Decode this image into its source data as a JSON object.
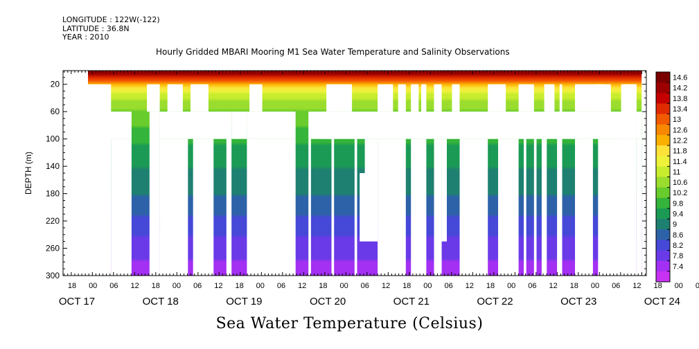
{
  "header": {
    "longitude": "LONGITUDE : 122W(-122)",
    "latitude": "LATITUDE : 36.8N",
    "year": "YEAR : 2010",
    "title": "Hourly Gridded MBARI Mooring M1 Sea Water Temperature and Salinity Observations"
  },
  "chart_data": {
    "type": "heatmap",
    "title": "Hourly Gridded MBARI Mooring M1 Sea Water Temperature and Salinity Observations",
    "xlabel": "Sea Water Temperature (Celsius)",
    "ylabel": "DEPTH (m)",
    "ylim": [
      300,
      0
    ],
    "y_ticks": [
      20,
      60,
      100,
      140,
      180,
      220,
      260,
      300
    ],
    "x_range_hours": [
      0,
      216
    ],
    "x_hour_ticks": [
      "18",
      "00",
      "06",
      "12",
      "18",
      "00",
      "06",
      "12",
      "18",
      "00",
      "06",
      "12",
      "18",
      "00",
      "06",
      "12",
      "18",
      "00",
      "06",
      "12",
      "18",
      "00",
      "06",
      "12",
      "18",
      "00",
      "06",
      "12",
      "18",
      "00",
      "06",
      "12"
    ],
    "x_day_labels": [
      "OCT 17",
      "OCT 18",
      "OCT 19",
      "OCT 20",
      "OCT 21",
      "OCT 22",
      "OCT 23",
      "OCT 24"
    ],
    "colorbar_levels": [
      "14.6",
      "14.2",
      "13.8",
      "13.4",
      "13",
      "12.6",
      "12.2",
      "11.8",
      "11.4",
      "11",
      "10.6",
      "10.2",
      "9.8",
      "9.4",
      "9",
      "8.6",
      "8.2",
      "7.8",
      "7.4"
    ],
    "colorbar_colors": [
      "#7a0000",
      "#9c0000",
      "#c40000",
      "#e02a00",
      "#f25a00",
      "#f88800",
      "#fbb000",
      "#fde23a",
      "#eef23a",
      "#c8ec2e",
      "#9bdd2e",
      "#68cc2c",
      "#34b43a",
      "#1b9a55",
      "#1e8070",
      "#2d62a8",
      "#4648d8",
      "#6a3ae8",
      "#a330f2",
      "#c832f2"
    ],
    "temperature_profile": [
      {
        "depth": 5,
        "temp": 14.2
      },
      {
        "depth": 15,
        "temp": 13.0
      },
      {
        "depth": 25,
        "temp": 12.0
      },
      {
        "depth": 40,
        "temp": 11.0
      },
      {
        "depth": 60,
        "temp": 10.5
      },
      {
        "depth": 100,
        "temp": 9.9
      },
      {
        "depth": 140,
        "temp": 9.4
      },
      {
        "depth": 180,
        "temp": 9.0
      },
      {
        "depth": 220,
        "temp": 8.5
      },
      {
        "depth": 260,
        "temp": 8.0
      },
      {
        "depth": 300,
        "temp": 7.5
      }
    ],
    "missing_blocks": [
      {
        "x0": 0,
        "x1": 9,
        "y0": 20,
        "y1": 300
      },
      {
        "x0": 0,
        "x1": 17,
        "y0": 60,
        "y1": 100
      },
      {
        "x0": 9,
        "x1": 17,
        "y0": 100,
        "y1": 300
      },
      {
        "x0": 9,
        "x1": 13,
        "y0": 80,
        "y1": 100
      },
      {
        "x0": 24,
        "x1": 28,
        "y0": 60,
        "y1": 300
      },
      {
        "x0": 28,
        "x1": 56,
        "y0": 60,
        "y1": 100
      },
      {
        "x0": 28,
        "x1": 39,
        "y0": 100,
        "y1": 300
      },
      {
        "x0": 41,
        "x1": 49,
        "y0": 100,
        "y1": 300
      },
      {
        "x0": 62,
        "x1": 81,
        "y0": 60,
        "y1": 100
      },
      {
        "x0": 62,
        "x1": 81,
        "y0": 100,
        "y1": 300
      },
      {
        "x0": 23,
        "x1": 28,
        "y0": 20,
        "y1": 60
      },
      {
        "x0": 31,
        "x1": 37,
        "y0": 20,
        "y1": 60
      },
      {
        "x0": 40,
        "x1": 47,
        "y0": 20,
        "y1": 60
      },
      {
        "x0": 63,
        "x1": 68,
        "y0": 20,
        "y1": 60
      },
      {
        "x0": 86,
        "x1": 105,
        "y0": 60,
        "y1": 100
      },
      {
        "x0": 93,
        "x1": 103,
        "y0": 20,
        "y1": 60
      },
      {
        "x0": 91,
        "x1": 95,
        "y0": 60,
        "y1": 100
      },
      {
        "x0": 105,
        "x1": 214,
        "y0": 60,
        "y1": 100
      },
      {
        "x0": 86,
        "x1": 87,
        "y0": 100,
        "y1": 300
      },
      {
        "x0": 95,
        "x1": 96,
        "y0": 100,
        "y1": 300
      },
      {
        "x0": 104,
        "x1": 105,
        "y0": 100,
        "y1": 300
      },
      {
        "x0": 108,
        "x1": 113,
        "y0": 100,
        "y1": 150
      },
      {
        "x0": 106,
        "x1": 113,
        "y0": 150,
        "y1": 250
      },
      {
        "x0": 113,
        "x1": 124,
        "y0": 100,
        "y1": 300
      },
      {
        "x0": 126,
        "x1": 132,
        "y0": 100,
        "y1": 300
      },
      {
        "x0": 135,
        "x1": 138,
        "y0": 100,
        "y1": 300
      },
      {
        "x0": 138,
        "x1": 140,
        "y0": 100,
        "y1": 250
      },
      {
        "x0": 145,
        "x1": 156,
        "y0": 100,
        "y1": 300
      },
      {
        "x0": 160,
        "x1": 168,
        "y0": 100,
        "y1": 300
      },
      {
        "x0": 170,
        "x1": 171,
        "y0": 100,
        "y1": 300
      },
      {
        "x0": 174,
        "x1": 175,
        "y0": 100,
        "y1": 300
      },
      {
        "x0": 177,
        "x1": 179,
        "y0": 100,
        "y1": 300
      },
      {
        "x0": 190,
        "x1": 197,
        "y0": 100,
        "y1": 300
      },
      {
        "x0": 199,
        "x1": 214,
        "y0": 100,
        "y1": 300
      },
      {
        "x0": 208,
        "x1": 214,
        "y0": 20,
        "y1": 100
      },
      {
        "x0": 113,
        "x1": 119,
        "y0": 20,
        "y1": 60
      },
      {
        "x0": 121,
        "x1": 124,
        "y0": 20,
        "y1": 60
      },
      {
        "x0": 126,
        "x1": 129,
        "y0": 20,
        "y1": 60
      },
      {
        "x0": 130,
        "x1": 132,
        "y0": 20,
        "y1": 60
      },
      {
        "x0": 135,
        "x1": 138,
        "y0": 20,
        "y1": 60
      },
      {
        "x0": 142,
        "x1": 145,
        "y0": 20,
        "y1": 60
      },
      {
        "x0": 156,
        "x1": 163,
        "y0": 20,
        "y1": 60
      },
      {
        "x0": 168,
        "x1": 174,
        "y0": 20,
        "y1": 60
      },
      {
        "x0": 178,
        "x1": 182,
        "y0": 20,
        "y1": 60
      },
      {
        "x0": 184,
        "x1": 185,
        "y0": 20,
        "y1": 60
      },
      {
        "x0": 190,
        "x1": 200,
        "y0": 20,
        "y1": 60
      },
      {
        "x0": 200,
        "x1": 204,
        "y0": 20,
        "y1": 60
      },
      {
        "x0": 209,
        "x1": 214,
        "y0": 20,
        "y1": 60
      },
      {
        "x0": 214,
        "x1": 216,
        "y0": 60,
        "y1": 100
      },
      {
        "x0": 214,
        "x1": 216,
        "y0": 100,
        "y1": 300
      },
      {
        "x0": 198,
        "x1": 201,
        "y0": 20,
        "y1": 60
      },
      {
        "x0": 56,
        "x1": 62,
        "y0": 60,
        "y1": 100
      },
      {
        "x0": 54,
        "x1": 56,
        "y0": 100,
        "y1": 300
      },
      {
        "x0": 183,
        "x1": 185,
        "y0": 60,
        "y1": 300
      }
    ]
  }
}
